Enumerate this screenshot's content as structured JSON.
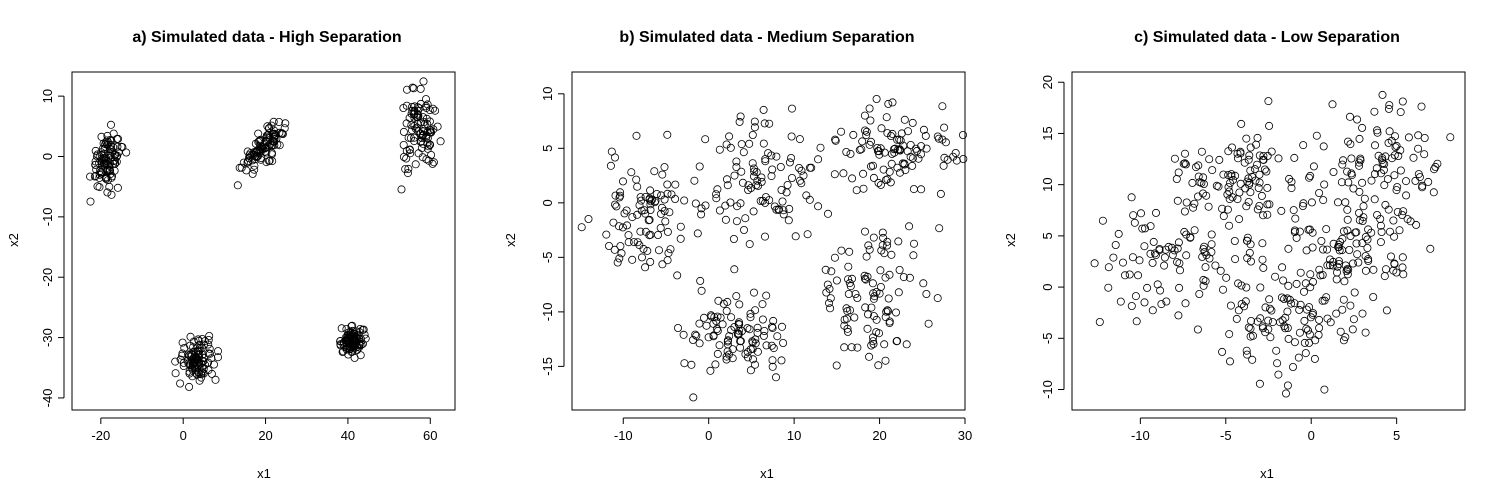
{
  "chart_data": [
    {
      "type": "scatter",
      "title": "a) Simulated data - High Separation",
      "xlabel": "x1",
      "ylabel": "x2",
      "xlim": [
        -27,
        66
      ],
      "ylim": [
        -42,
        14
      ],
      "xticks": [
        -20,
        0,
        20,
        40,
        60
      ],
      "yticks": [
        -40,
        -30,
        -20,
        -10,
        0,
        10
      ],
      "clusters": [
        {
          "cx": -18.5,
          "cy": -0.5,
          "sx": 2.0,
          "sy": 2.3,
          "n": 100,
          "rho": 0.15
        },
        {
          "cx": 19.5,
          "cy": 1.5,
          "sx": 2.4,
          "sy": 1.9,
          "n": 100,
          "rho": 0.8
        },
        {
          "cx": 57.5,
          "cy": 4.0,
          "sx": 2.3,
          "sy": 3.3,
          "n": 100,
          "rho": 0.0
        },
        {
          "cx": 3.5,
          "cy": -33.5,
          "sx": 2.3,
          "sy": 1.8,
          "n": 100,
          "rho": 0.0
        },
        {
          "cx": 41.0,
          "cy": -30.5,
          "sx": 1.3,
          "sy": 1.1,
          "n": 100,
          "rho": 0.0
        }
      ]
    },
    {
      "type": "scatter",
      "title": "b) Simulated data - Medium Separation",
      "xlabel": "x1",
      "ylabel": "x2",
      "xlim": [
        -16,
        30
      ],
      "ylim": [
        -19,
        12
      ],
      "xticks": [
        -10,
        0,
        10,
        20,
        30
      ],
      "yticks": [
        -15,
        -10,
        -5,
        0,
        5,
        10
      ],
      "clusters": [
        {
          "cx": -7,
          "cy": -1.5,
          "sx": 3.3,
          "sy": 2.9,
          "n": 100,
          "rho": 0.0
        },
        {
          "cx": 7,
          "cy": 2,
          "sx": 3.2,
          "sy": 3.2,
          "n": 100,
          "rho": 0.0
        },
        {
          "cx": 22,
          "cy": 5,
          "sx": 3.2,
          "sy": 2.0,
          "n": 100,
          "rho": 0.0
        },
        {
          "cx": 3,
          "cy": -12.5,
          "sx": 3.0,
          "sy": 2.0,
          "n": 100,
          "rho": 0.0
        },
        {
          "cx": 19,
          "cy": -8.5,
          "sx": 3.3,
          "sy": 3.2,
          "n": 100,
          "rho": 0.0
        }
      ]
    },
    {
      "type": "scatter",
      "title": "c) Simulated data - Low Separation",
      "xlabel": "x1",
      "ylabel": "x2",
      "xlim": [
        -14,
        9
      ],
      "ylim": [
        -12,
        21
      ],
      "xticks": [
        -10,
        -5,
        0,
        5
      ],
      "yticks": [
        -10,
        -5,
        0,
        5,
        10,
        15,
        20
      ],
      "clusters": [
        {
          "cx": -4.5,
          "cy": 10.5,
          "sx": 1.8,
          "sy": 2.0,
          "n": 100,
          "rho": 0.0
        },
        {
          "cx": -8,
          "cy": 2.5,
          "sx": 2.5,
          "sy": 3.5,
          "n": 100,
          "rho": 0.0
        },
        {
          "cx": -1.5,
          "cy": -3.5,
          "sx": 2.2,
          "sy": 3.0,
          "n": 100,
          "rho": 0.0
        },
        {
          "cx": 2,
          "cy": 3.5,
          "sx": 2.3,
          "sy": 3.0,
          "n": 100,
          "rho": 0.0
        },
        {
          "cx": 4,
          "cy": 12.5,
          "sx": 2.0,
          "sy": 3.2,
          "n": 100,
          "rho": 0.0
        }
      ]
    }
  ]
}
